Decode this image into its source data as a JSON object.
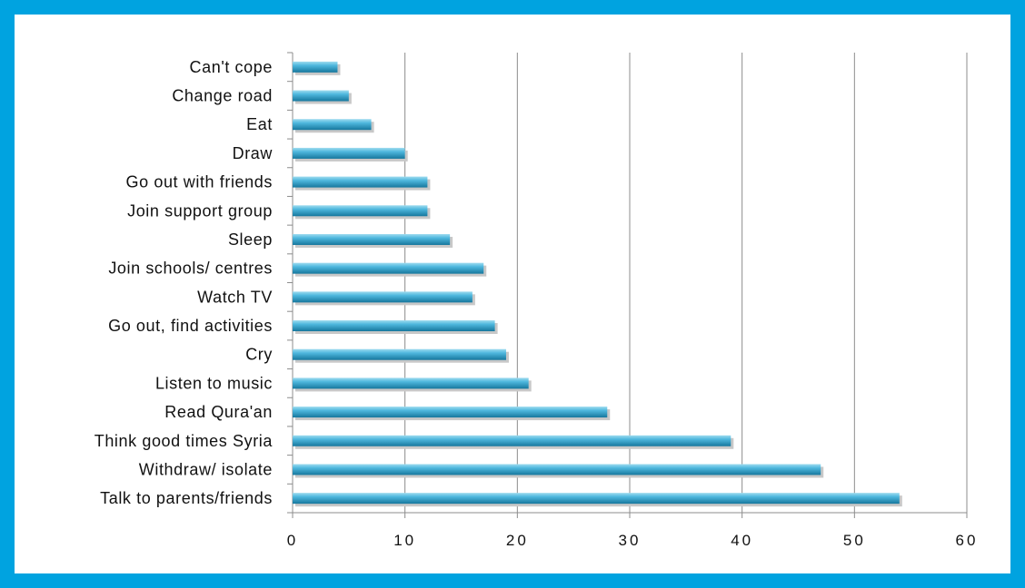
{
  "chart_data": {
    "type": "bar",
    "orientation": "horizontal",
    "categories": [
      "Can't cope",
      "Change road",
      "Eat",
      "Draw",
      "Go out with friends",
      "Join support group",
      "Sleep",
      "Join schools/ centres",
      "Watch TV",
      "Go out, find activities",
      "Cry",
      "Listen to music",
      "Read Qura'an",
      "Think good times Syria",
      "Withdraw/ isolate",
      "Talk to parents/friends"
    ],
    "values": [
      4,
      5,
      7,
      10,
      12,
      12,
      14,
      17,
      16,
      18,
      19,
      21,
      28,
      39,
      47,
      54
    ],
    "xlim": [
      0,
      60
    ],
    "xticks": [
      0,
      10,
      20,
      30,
      40,
      50,
      60
    ],
    "xtick_labels": [
      "0",
      "10",
      "20",
      "30",
      "40",
      "50",
      "60"
    ],
    "title": "",
    "xlabel": "",
    "ylabel": "",
    "grid": "vertical",
    "legend": "none"
  },
  "colors": {
    "frame": "#00a3e0",
    "bar_light": "#5cc3e3",
    "bar_dark": "#1b7fa6",
    "gridline": "#8c8c8c"
  }
}
